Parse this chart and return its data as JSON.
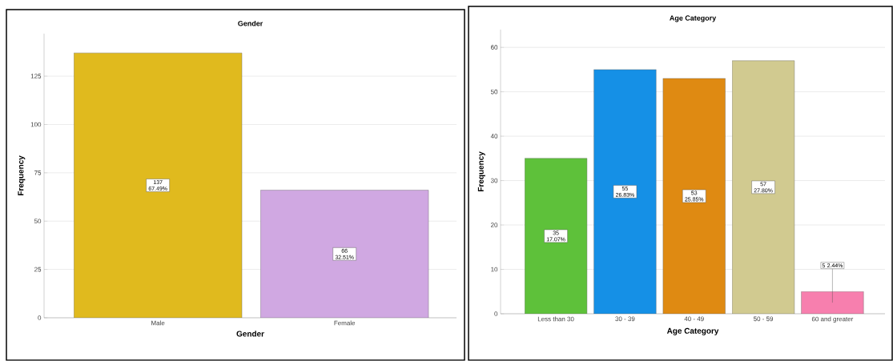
{
  "chart_data": [
    {
      "type": "bar",
      "title": "Gender",
      "xlabel": "Gender",
      "ylabel": "Frequency",
      "categories": [
        "Male",
        "Female"
      ],
      "values": [
        137,
        66
      ],
      "colors": [
        "#e0ba1e",
        "#d0a8e2"
      ],
      "value_labels": [
        "137 67.49%",
        "66 32.51%"
      ],
      "ylim": [
        0,
        147
      ],
      "yticks": [
        0,
        25,
        50,
        75,
        100,
        125
      ],
      "grid": "y"
    },
    {
      "type": "bar",
      "title": "Age Category",
      "xlabel": "Age Category",
      "ylabel": "Frequency",
      "categories": [
        "Less than 30",
        "30 - 39",
        "40 - 49",
        "50 - 59",
        "60 and greater"
      ],
      "values": [
        35,
        55,
        53,
        57,
        5
      ],
      "colors": [
        "#5ec13a",
        "#1590e6",
        "#df8a12",
        "#d1ca90",
        "#f77fae"
      ],
      "value_labels": [
        "35 17.07%",
        "55 26.83%",
        "53 25.85%",
        "57 27.80%",
        "5 2.44%"
      ],
      "ylim": [
        0,
        64
      ],
      "yticks": [
        0,
        10,
        20,
        30,
        40,
        50,
        60
      ],
      "grid": "y"
    }
  ]
}
